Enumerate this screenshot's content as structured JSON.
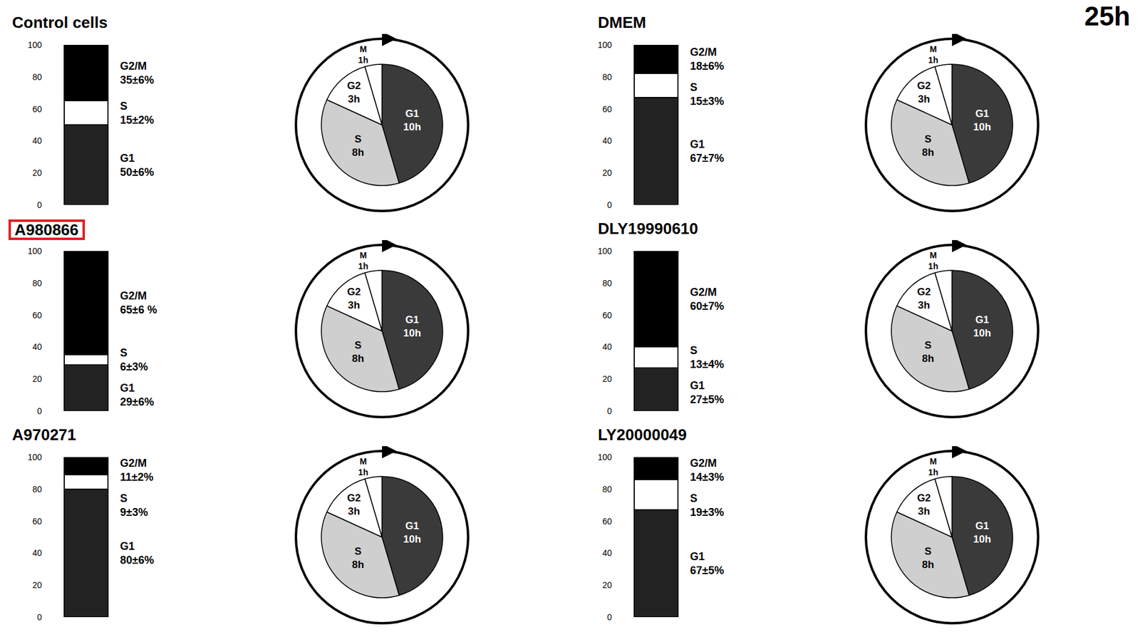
{
  "time_label": "25h",
  "chart_data": [
    {
      "type": "bar",
      "title": "Control cells",
      "stacked": true,
      "categories": [
        null
      ],
      "ylim": [
        0,
        100
      ],
      "yticks": [
        0,
        20,
        40,
        60,
        80,
        100
      ],
      "grid": false,
      "tick_labels": "y",
      "data_labels": true,
      "series": [
        {
          "name": "G1",
          "color": "#222222",
          "values": [
            50
          ],
          "value_labels": [
            "50±6%"
          ]
        },
        {
          "name": "S",
          "color": "#ffffff",
          "values": [
            15
          ],
          "value_labels": [
            "15±2%"
          ]
        },
        {
          "name": "G2/M",
          "color": "#000000",
          "values": [
            35
          ],
          "value_labels": [
            "35±6%"
          ]
        }
      ]
    },
    {
      "type": "pie",
      "categories": [
        "G1",
        "S",
        "G2",
        "M"
      ],
      "values": [
        10,
        8,
        3,
        1
      ],
      "value_labels": [
        "10h",
        "8h",
        "3h",
        "1h"
      ],
      "colors": [
        "#3a3a3a",
        "#cfcfcf",
        "#ffffff",
        "#ffffff"
      ],
      "data_labels": true
    },
    {
      "type": "bar",
      "title": "DMEM",
      "stacked": true,
      "categories": [
        null
      ],
      "ylim": [
        0,
        100
      ],
      "yticks": [
        0,
        20,
        40,
        60,
        80,
        100
      ],
      "grid": false,
      "tick_labels": "y",
      "data_labels": true,
      "series": [
        {
          "name": "G1",
          "color": "#222222",
          "values": [
            67
          ],
          "value_labels": [
            "67±7%"
          ]
        },
        {
          "name": "S",
          "color": "#ffffff",
          "values": [
            15
          ],
          "value_labels": [
            "15±3%"
          ]
        },
        {
          "name": "G2/M",
          "color": "#000000",
          "values": [
            18
          ],
          "value_labels": [
            "18±6%"
          ]
        }
      ]
    },
    {
      "type": "pie",
      "categories": [
        "G1",
        "S",
        "G2",
        "M"
      ],
      "values": [
        10,
        8,
        3,
        1
      ],
      "value_labels": [
        "10h",
        "8h",
        "3h",
        "1h"
      ],
      "colors": [
        "#3a3a3a",
        "#cfcfcf",
        "#ffffff",
        "#ffffff"
      ],
      "data_labels": true
    },
    {
      "type": "bar",
      "title": "A980866",
      "stacked": true,
      "categories": [
        null
      ],
      "ylim": [
        0,
        100
      ],
      "yticks": [
        0,
        20,
        40,
        60,
        80,
        100
      ],
      "grid": false,
      "tick_labels": "y",
      "data_labels": true,
      "series": [
        {
          "name": "G1",
          "color": "#222222",
          "values": [
            29
          ],
          "value_labels": [
            "29±6%"
          ]
        },
        {
          "name": "S",
          "color": "#ffffff",
          "values": [
            6
          ],
          "value_labels": [
            "6±3%"
          ]
        },
        {
          "name": "G2/M",
          "color": "#000000",
          "values": [
            65
          ],
          "value_labels": [
            "65±6 %"
          ]
        }
      ]
    },
    {
      "type": "pie",
      "categories": [
        "G1",
        "S",
        "G2",
        "M"
      ],
      "values": [
        10,
        8,
        3,
        1
      ],
      "value_labels": [
        "10h",
        "8h",
        "3h",
        "1h"
      ],
      "colors": [
        "#3a3a3a",
        "#cfcfcf",
        "#ffffff",
        "#ffffff"
      ],
      "data_labels": true
    },
    {
      "type": "bar",
      "title": "DLY19990610",
      "stacked": true,
      "categories": [
        null
      ],
      "ylim": [
        0,
        100
      ],
      "yticks": [
        0,
        20,
        40,
        60,
        80,
        100
      ],
      "grid": false,
      "tick_labels": "y",
      "data_labels": true,
      "series": [
        {
          "name": "G1",
          "color": "#222222",
          "values": [
            27
          ],
          "value_labels": [
            "27±5%"
          ]
        },
        {
          "name": "S",
          "color": "#ffffff",
          "values": [
            13
          ],
          "value_labels": [
            "13±4%"
          ]
        },
        {
          "name": "G2/M",
          "color": "#000000",
          "values": [
            60
          ],
          "value_labels": [
            "60±7%"
          ]
        }
      ]
    },
    {
      "type": "pie",
      "categories": [
        "G1",
        "S",
        "G2",
        "M"
      ],
      "values": [
        10,
        8,
        3,
        1
      ],
      "value_labels": [
        "10h",
        "8h",
        "3h",
        "1h"
      ],
      "colors": [
        "#3a3a3a",
        "#cfcfcf",
        "#ffffff",
        "#ffffff"
      ],
      "data_labels": true
    },
    {
      "type": "bar",
      "title": "A970271",
      "stacked": true,
      "categories": [
        null
      ],
      "ylim": [
        0,
        100
      ],
      "yticks": [
        0,
        20,
        40,
        60,
        80,
        100
      ],
      "grid": false,
      "tick_labels": "y",
      "data_labels": true,
      "series": [
        {
          "name": "G1",
          "color": "#222222",
          "values": [
            80
          ],
          "value_labels": [
            "80±6%"
          ]
        },
        {
          "name": "S",
          "color": "#ffffff",
          "values": [
            9
          ],
          "value_labels": [
            "9±3%"
          ]
        },
        {
          "name": "G2/M",
          "color": "#000000",
          "values": [
            11
          ],
          "value_labels": [
            "11±2%"
          ]
        }
      ]
    },
    {
      "type": "pie",
      "categories": [
        "G1",
        "S",
        "G2",
        "M"
      ],
      "values": [
        10,
        8,
        3,
        1
      ],
      "value_labels": [
        "10h",
        "8h",
        "3h",
        "1h"
      ],
      "colors": [
        "#3a3a3a",
        "#cfcfcf",
        "#ffffff",
        "#ffffff"
      ],
      "data_labels": true
    },
    {
      "type": "bar",
      "title": "LY20000049",
      "stacked": true,
      "categories": [
        null
      ],
      "ylim": [
        0,
        100
      ],
      "yticks": [
        0,
        20,
        40,
        60,
        80,
        100
      ],
      "grid": false,
      "tick_labels": "y",
      "data_labels": true,
      "series": [
        {
          "name": "G1",
          "color": "#222222",
          "values": [
            67
          ],
          "value_labels": [
            "67±5%"
          ]
        },
        {
          "name": "S",
          "color": "#ffffff",
          "values": [
            19
          ],
          "value_labels": [
            "19±3%"
          ]
        },
        {
          "name": "G2/M",
          "color": "#000000",
          "values": [
            14
          ],
          "value_labels": [
            "14±3%"
          ]
        }
      ]
    },
    {
      "type": "pie",
      "categories": [
        "G1",
        "S",
        "G2",
        "M"
      ],
      "values": [
        10,
        8,
        3,
        1
      ],
      "value_labels": [
        "10h",
        "8h",
        "3h",
        "1h"
      ],
      "colors": [
        "#3a3a3a",
        "#cfcfcf",
        "#ffffff",
        "#ffffff"
      ],
      "data_labels": true
    }
  ]
}
